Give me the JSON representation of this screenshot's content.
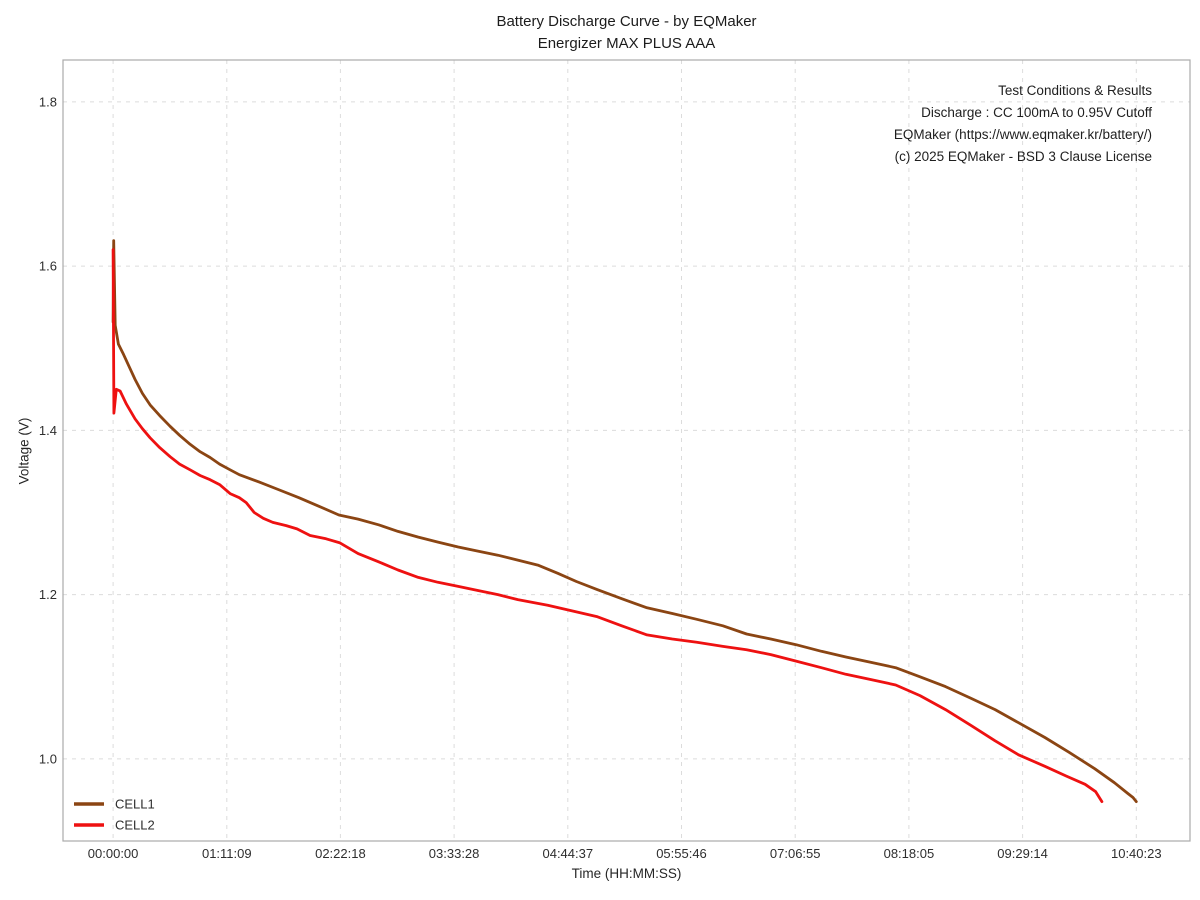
{
  "chart_data": {
    "type": "line",
    "title": "Battery Discharge Curve - by EQMaker",
    "subtitle": "Energizer MAX PLUS AAA",
    "xlabel": "Time (HH:MM:SS)",
    "ylabel": "Voltage (V)",
    "x_unit": "seconds",
    "xlim": [
      -1880,
      40440
    ],
    "ylim": [
      0.9,
      1.851
    ],
    "grid": true,
    "grid_style": "dashed",
    "legend_position": "lower-left",
    "x_ticks": [
      {
        "seconds": 0,
        "label": "00:00:00"
      },
      {
        "seconds": 4269,
        "label": "01:11:09"
      },
      {
        "seconds": 8538,
        "label": "02:22:18"
      },
      {
        "seconds": 12808,
        "label": "03:33:28"
      },
      {
        "seconds": 17077,
        "label": "04:44:37"
      },
      {
        "seconds": 21346,
        "label": "05:55:46"
      },
      {
        "seconds": 25615,
        "label": "07:06:55"
      },
      {
        "seconds": 29885,
        "label": "08:18:05"
      },
      {
        "seconds": 34154,
        "label": "09:29:14"
      },
      {
        "seconds": 38423,
        "label": "10:40:23"
      }
    ],
    "y_ticks": [
      {
        "value": 1.0,
        "label": "1.0"
      },
      {
        "value": 1.2,
        "label": "1.2"
      },
      {
        "value": 1.4,
        "label": "1.4"
      },
      {
        "value": 1.6,
        "label": "1.6"
      },
      {
        "value": 1.8,
        "label": "1.8"
      }
    ],
    "colors": {
      "grid": "#dcdcdc",
      "spine": "#aaaaaa",
      "tick_text": "#2e2e2e"
    },
    "series": [
      {
        "name": "CELL1",
        "color": "#8B4513",
        "points": [
          [
            0,
            1.532
          ],
          [
            25,
            1.631
          ],
          [
            80,
            1.528
          ],
          [
            200,
            1.505
          ],
          [
            400,
            1.492
          ],
          [
            600,
            1.478
          ],
          [
            826,
            1.462
          ],
          [
            1100,
            1.445
          ],
          [
            1389,
            1.431
          ],
          [
            1750,
            1.418
          ],
          [
            2140,
            1.405
          ],
          [
            2500,
            1.394
          ],
          [
            2891,
            1.383
          ],
          [
            3270,
            1.374
          ],
          [
            3642,
            1.367
          ],
          [
            4000,
            1.359
          ],
          [
            4393,
            1.352
          ],
          [
            4740,
            1.346
          ],
          [
            5490,
            1.337
          ],
          [
            6200,
            1.328
          ],
          [
            6980,
            1.318
          ],
          [
            7700,
            1.308
          ],
          [
            8480,
            1.297
          ],
          [
            9200,
            1.292
          ],
          [
            9970,
            1.285
          ],
          [
            10700,
            1.277
          ],
          [
            11460,
            1.27
          ],
          [
            12200,
            1.264
          ],
          [
            12960,
            1.258
          ],
          [
            13700,
            1.253
          ],
          [
            14450,
            1.248
          ],
          [
            15200,
            1.242
          ],
          [
            15950,
            1.236
          ],
          [
            16700,
            1.226
          ],
          [
            17400,
            1.216
          ],
          [
            18190,
            1.206
          ],
          [
            19100,
            1.195
          ],
          [
            20050,
            1.184
          ],
          [
            21000,
            1.177
          ],
          [
            21920,
            1.17
          ],
          [
            22900,
            1.162
          ],
          [
            23790,
            1.152
          ],
          [
            24700,
            1.146
          ],
          [
            25650,
            1.139
          ],
          [
            26600,
            1.131
          ],
          [
            27520,
            1.124
          ],
          [
            28400,
            1.118
          ],
          [
            29390,
            1.111
          ],
          [
            30300,
            1.1
          ],
          [
            31260,
            1.088
          ],
          [
            32200,
            1.074
          ],
          [
            33120,
            1.06
          ],
          [
            34000,
            1.044
          ],
          [
            34990,
            1.026
          ],
          [
            35900,
            1.008
          ],
          [
            36860,
            0.988
          ],
          [
            37600,
            0.971
          ],
          [
            38100,
            0.958
          ],
          [
            38300,
            0.953
          ],
          [
            38423,
            0.948
          ]
        ]
      },
      {
        "name": "CELL2",
        "color": "#EE1111",
        "points": [
          [
            0,
            1.62
          ],
          [
            30,
            1.421
          ],
          [
            120,
            1.45
          ],
          [
            263,
            1.448
          ],
          [
            500,
            1.432
          ],
          [
            826,
            1.414
          ],
          [
            1100,
            1.402
          ],
          [
            1389,
            1.391
          ],
          [
            1750,
            1.379
          ],
          [
            2140,
            1.368
          ],
          [
            2500,
            1.359
          ],
          [
            2891,
            1.352
          ],
          [
            3270,
            1.345
          ],
          [
            3642,
            1.34
          ],
          [
            4000,
            1.334
          ],
          [
            4393,
            1.323
          ],
          [
            4740,
            1.318
          ],
          [
            5000,
            1.312
          ],
          [
            5300,
            1.3
          ],
          [
            5640,
            1.293
          ],
          [
            6000,
            1.288
          ],
          [
            6500,
            1.284
          ],
          [
            6908,
            1.28
          ],
          [
            7400,
            1.272
          ],
          [
            8000,
            1.268
          ],
          [
            8523,
            1.263
          ],
          [
            9200,
            1.25
          ],
          [
            9970,
            1.24
          ],
          [
            10700,
            1.23
          ],
          [
            11460,
            1.221
          ],
          [
            12200,
            1.215
          ],
          [
            12960,
            1.21
          ],
          [
            13700,
            1.205
          ],
          [
            14450,
            1.2
          ],
          [
            15200,
            1.194
          ],
          [
            16320,
            1.187
          ],
          [
            17400,
            1.179
          ],
          [
            18190,
            1.173
          ],
          [
            19100,
            1.162
          ],
          [
            20050,
            1.151
          ],
          [
            21000,
            1.146
          ],
          [
            21920,
            1.142
          ],
          [
            22900,
            1.137
          ],
          [
            23790,
            1.133
          ],
          [
            24700,
            1.127
          ],
          [
            25650,
            1.119
          ],
          [
            26600,
            1.111
          ],
          [
            27520,
            1.103
          ],
          [
            28400,
            1.097
          ],
          [
            29390,
            1.09
          ],
          [
            30300,
            1.077
          ],
          [
            31260,
            1.06
          ],
          [
            32200,
            1.041
          ],
          [
            33120,
            1.022
          ],
          [
            34000,
            1.005
          ],
          [
            34990,
            0.991
          ],
          [
            35800,
            0.979
          ],
          [
            36500,
            0.969
          ],
          [
            36900,
            0.96
          ],
          [
            37130,
            0.948
          ]
        ]
      }
    ]
  },
  "info_block": {
    "lines": [
      "Test Conditions & Results",
      "Discharge : CC 100mA to 0.95V Cutoff",
      "EQMaker (https://www.eqmaker.kr/battery/)",
      "(c) 2025 EQMaker - BSD 3 Clause License"
    ]
  }
}
